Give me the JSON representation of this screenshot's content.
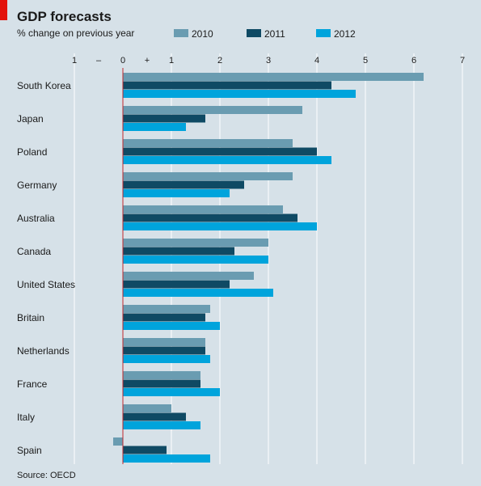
{
  "chart_data": {
    "type": "bar",
    "orientation": "horizontal",
    "title": "GDP forecasts",
    "subtitle": "% change on previous year",
    "source": "Source: OECD",
    "categories": [
      "South Korea",
      "Japan",
      "Poland",
      "Germany",
      "Australia",
      "Canada",
      "United States",
      "Britain",
      "Netherlands",
      "France",
      "Italy",
      "Spain"
    ],
    "series": [
      {
        "name": "2010",
        "color": "#6a9cb1",
        "values": [
          6.2,
          3.7,
          3.5,
          3.5,
          3.3,
          3.0,
          2.7,
          1.8,
          1.7,
          1.6,
          1.0,
          -0.2
        ]
      },
      {
        "name": "2011",
        "color": "#0f4a64",
        "values": [
          4.3,
          1.7,
          4.0,
          2.5,
          3.6,
          2.3,
          2.2,
          1.7,
          1.7,
          1.6,
          1.3,
          0.9
        ]
      },
      {
        "name": "2012",
        "color": "#00a4dc",
        "values": [
          4.8,
          1.3,
          4.3,
          2.2,
          4.0,
          3.0,
          3.1,
          2.0,
          1.8,
          2.0,
          1.6,
          1.8
        ]
      }
    ],
    "xlim": [
      -1,
      7
    ],
    "xticks": [
      {
        "value": -1,
        "label": "1"
      },
      {
        "value": 0,
        "label": "0"
      },
      {
        "value": 1,
        "label": "1"
      },
      {
        "value": 2,
        "label": "2"
      },
      {
        "value": 3,
        "label": "3"
      },
      {
        "value": 4,
        "label": "4"
      },
      {
        "value": 5,
        "label": "5"
      },
      {
        "value": 6,
        "label": "6"
      },
      {
        "value": 7,
        "label": "7"
      }
    ],
    "sign_labels": [
      {
        "value": -0.5,
        "label": "–"
      },
      {
        "value": 0.5,
        "label": "+"
      }
    ],
    "grid": true,
    "legend_position": "top"
  },
  "colors": {
    "accent": "#e3120b",
    "background": "#d6e1e8",
    "grid": "#ffffff",
    "zero_line": "#c1272d"
  }
}
